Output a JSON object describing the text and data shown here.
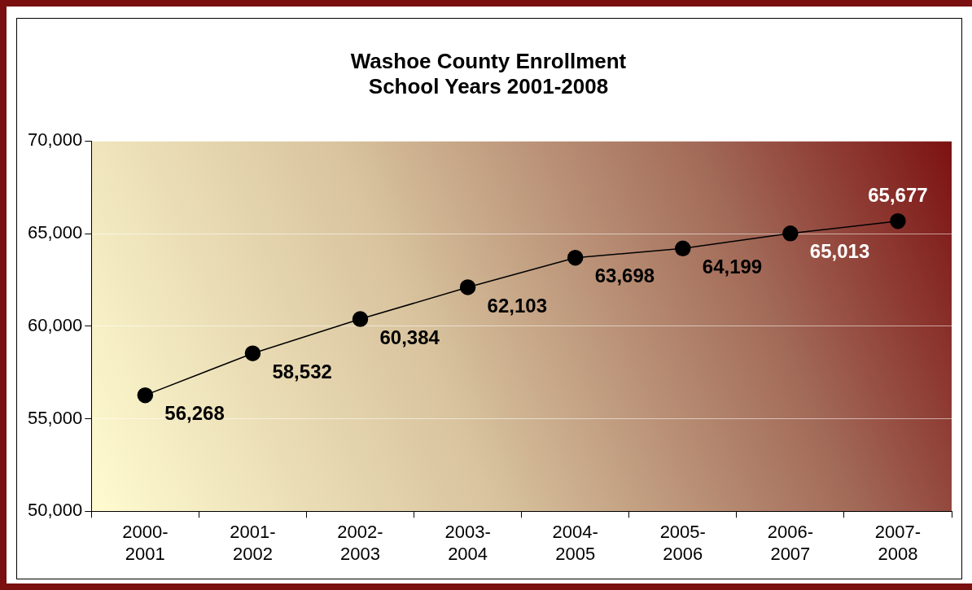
{
  "chart_data": {
    "type": "line",
    "title": [
      "Washoe County Enrollment",
      "School Years 2001-2008"
    ],
    "categories": [
      "2000-2001",
      "2001-2002",
      "2002-2003",
      "2003-2004",
      "2004-2005",
      "2005-2006",
      "2006-2007",
      "2007-2008"
    ],
    "series": [
      {
        "color": "#000000",
        "values": [
          56268,
          58532,
          60384,
          62103,
          63698,
          64199,
          65013,
          65677
        ]
      }
    ],
    "ylim": [
      50000,
      70000
    ],
    "yticks": [
      {
        "value": 50000,
        "label": "50,000"
      },
      {
        "value": 55000,
        "label": "55,000"
      },
      {
        "value": 60000,
        "label": "60,000"
      },
      {
        "value": 65000,
        "label": "65,000"
      },
      {
        "value": 70000,
        "label": "70,000"
      }
    ],
    "value_labels": [
      "56,268",
      "58,532",
      "60,384",
      "62,103",
      "63,698",
      "64,199",
      "65,013",
      "65,677"
    ],
    "grid": "y",
    "legend": false,
    "marker": "circle",
    "line_style": "solid"
  }
}
